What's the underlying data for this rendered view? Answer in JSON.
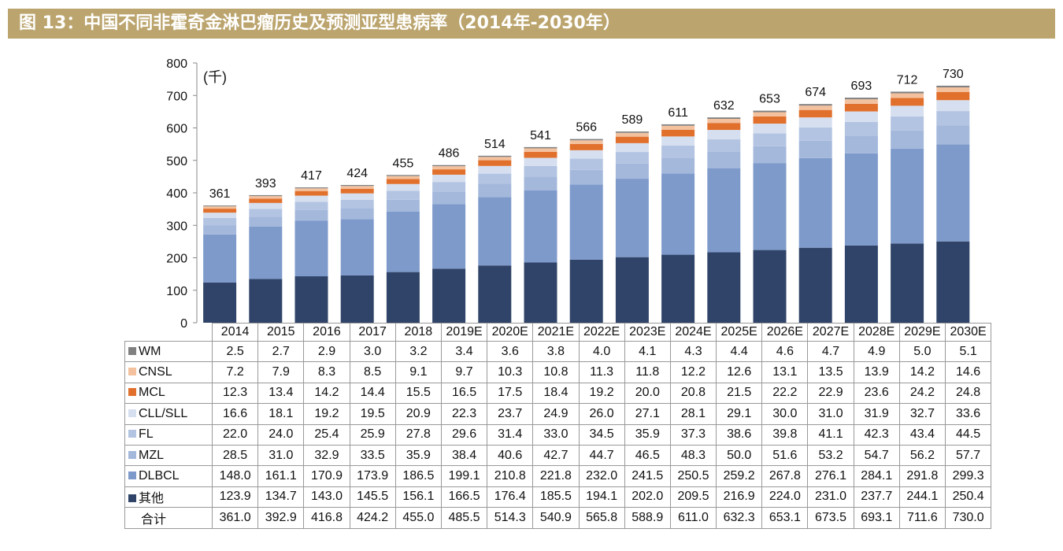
{
  "title": "图 13：中国不同非霍奇金淋巴瘤历史及预测亚型患病率（2014年-2030年）",
  "chart_data": {
    "type": "bar",
    "stacked": true,
    "unit_label": "(千)",
    "ylim": [
      0,
      800
    ],
    "yticks": [
      0,
      100,
      200,
      300,
      400,
      500,
      600,
      700,
      800
    ],
    "grid": false,
    "legend": "table-below",
    "categories": [
      "2014",
      "2015",
      "2016",
      "2017",
      "2018",
      "2019E",
      "2020E",
      "2021E",
      "2022E",
      "2023E",
      "2024E",
      "2025E",
      "2026E",
      "2027E",
      "2028E",
      "2029E",
      "2030E"
    ],
    "series": [
      {
        "name": "其他",
        "color": "#2F4468",
        "values": [
          123.9,
          134.7,
          143.0,
          145.5,
          156.1,
          166.5,
          176.4,
          185.5,
          194.1,
          202.0,
          209.5,
          216.9,
          224.0,
          231.0,
          237.7,
          244.1,
          250.4
        ]
      },
      {
        "name": "DLBCL",
        "color": "#7E9ACB",
        "values": [
          148.0,
          161.1,
          170.9,
          173.9,
          186.5,
          199.1,
          210.8,
          221.8,
          232.0,
          241.5,
          250.5,
          259.2,
          267.8,
          276.1,
          284.1,
          291.8,
          299.3
        ]
      },
      {
        "name": "MZL",
        "color": "#A4B8DC",
        "values": [
          28.5,
          31.0,
          32.9,
          33.5,
          35.9,
          38.4,
          40.6,
          42.7,
          44.7,
          46.5,
          48.3,
          50.0,
          51.6,
          53.2,
          54.7,
          56.2,
          57.7
        ]
      },
      {
        "name": "FL",
        "color": "#B3C4E2",
        "values": [
          22.0,
          24.0,
          25.4,
          25.9,
          27.8,
          29.6,
          31.4,
          33.0,
          34.5,
          35.9,
          37.3,
          38.6,
          39.8,
          41.1,
          42.3,
          43.4,
          44.5
        ]
      },
      {
        "name": "CLL/SLL",
        "color": "#D6DFEF",
        "values": [
          16.6,
          18.1,
          19.2,
          19.5,
          20.9,
          22.3,
          23.7,
          24.9,
          26.0,
          27.1,
          28.1,
          29.1,
          30.0,
          31.0,
          31.9,
          32.7,
          33.6
        ]
      },
      {
        "name": "MCL",
        "color": "#E1702D",
        "values": [
          12.3,
          13.4,
          14.2,
          14.4,
          15.5,
          16.5,
          17.5,
          18.4,
          19.2,
          20.0,
          20.8,
          21.5,
          22.2,
          22.9,
          23.6,
          24.2,
          24.8
        ]
      },
      {
        "name": "CNSL",
        "color": "#F3C19E",
        "values": [
          7.2,
          7.9,
          8.3,
          8.5,
          9.1,
          9.7,
          10.3,
          10.8,
          11.3,
          11.8,
          12.2,
          12.6,
          13.1,
          13.5,
          13.9,
          14.2,
          14.6
        ]
      },
      {
        "name": "WM",
        "color": "#808080",
        "values": [
          2.5,
          2.7,
          2.9,
          3.0,
          3.2,
          3.4,
          3.6,
          3.8,
          4.0,
          4.1,
          4.3,
          4.4,
          4.6,
          4.7,
          4.9,
          5.0,
          5.1
        ]
      }
    ],
    "total_label": "合计",
    "totals": [
      361.0,
      392.9,
      416.8,
      424.2,
      455.0,
      485.5,
      514.3,
      540.9,
      565.8,
      588.9,
      611.0,
      632.3,
      653.1,
      673.5,
      693.1,
      711.6,
      730.0
    ],
    "data_labels": [
      "361",
      "393",
      "417",
      "424",
      "455",
      "486",
      "514",
      "541",
      "566",
      "589",
      "611",
      "632",
      "653",
      "674",
      "693",
      "712",
      "730"
    ]
  }
}
